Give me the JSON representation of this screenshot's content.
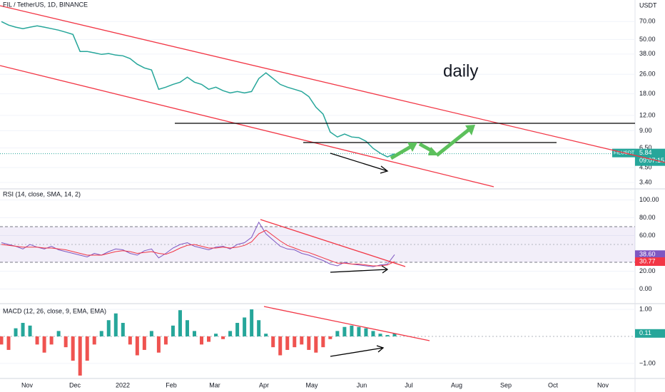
{
  "chart_data": [
    {
      "type": "line",
      "title": "FIL / TetherUS, 1D, BINANCE",
      "unit": "USDT",
      "annotation": "daily",
      "symbol_tag": "FILUSDT",
      "countdown": "09:07:15",
      "log_scale": true,
      "grid": true,
      "ylim": [
        3.14,
        105
      ],
      "yticks": [
        {
          "value": 70,
          "label": "70.00"
        },
        {
          "value": 50,
          "label": "50.00"
        },
        {
          "value": 38,
          "label": "38.00"
        },
        {
          "value": 26,
          "label": "26.00"
        },
        {
          "value": 18,
          "label": "18.00"
        },
        {
          "value": 12,
          "label": "12.00"
        },
        {
          "value": 9,
          "label": "9.00"
        },
        {
          "value": 6.5,
          "label": "6.50"
        },
        {
          "value": 4.5,
          "label": "4.50"
        },
        {
          "value": 3.4,
          "label": "3.40"
        }
      ],
      "x_labels": [
        "Nov",
        "Dec",
        "2022",
        "Feb",
        "Mar",
        "Apr",
        "May",
        "Jun",
        "Jul",
        "Aug",
        "Sep",
        "Oct",
        "Nov"
      ],
      "series": [
        {
          "color": "#26a69a",
          "values": [
            70,
            65.5,
            63,
            61.3,
            63,
            64.6,
            63,
            61.3,
            59.6,
            57.3,
            55,
            39.9,
            39.9,
            38.9,
            37.8,
            38.4,
            37.3,
            36.8,
            34.9,
            31.4,
            29.3,
            28.2,
            19.6,
            20.4,
            21.5,
            22.4,
            24.6,
            22.4,
            21.5,
            19.6,
            20.4,
            19.1,
            18.3,
            18.8,
            18.3,
            18.8,
            24,
            26.7,
            24,
            21.5,
            20.4,
            19.6,
            18.8,
            17.1,
            14,
            12.3,
            8.79,
            8,
            8.45,
            8,
            7.9,
            7.39,
            6.46,
            5.89,
            5.5,
            5.84
          ]
        }
      ]
    },
    {
      "type": "line",
      "title": "RSI (14, close, SMA, 14, 2)",
      "grid": true,
      "ylim": [
        -15.6,
        110
      ],
      "band": [
        30,
        70
      ],
      "yticks": [
        {
          "value": 100,
          "label": "100.00"
        },
        {
          "value": 80,
          "label": "80.00"
        },
        {
          "value": 60,
          "label": "60.00"
        },
        {
          "value": 20,
          "label": "20.00"
        },
        {
          "value": 0,
          "label": "0.00"
        }
      ],
      "series": [
        {
          "color": "#7e57c2",
          "last_label": "38.60",
          "values": [
            52,
            50,
            48,
            45,
            50,
            47,
            45,
            48,
            44,
            42,
            40,
            38,
            36,
            40,
            38,
            42,
            45,
            44,
            40,
            38,
            43,
            45,
            35,
            40,
            46,
            50,
            52,
            48,
            46,
            44,
            47,
            48,
            45,
            50,
            52,
            58,
            75,
            62,
            55,
            48,
            45,
            44,
            40,
            38,
            35,
            32,
            28,
            26,
            30,
            28,
            27,
            26,
            25,
            27,
            28,
            38.6
          ]
        },
        {
          "color": "#f23645",
          "last_label": "30.77",
          "values": [
            50,
            49,
            48,
            47,
            47,
            47,
            46,
            46,
            45,
            44,
            42,
            40,
            38,
            38,
            38,
            40,
            42,
            43,
            42,
            40,
            41,
            42,
            40,
            39,
            42,
            46,
            49,
            50,
            48,
            46,
            46,
            47,
            46,
            47,
            49,
            53,
            62,
            66,
            60,
            54,
            49,
            46,
            43,
            41,
            38,
            35,
            32,
            29,
            29,
            28,
            28,
            27,
            26,
            26,
            27,
            30.77
          ]
        }
      ]
    },
    {
      "type": "bar",
      "title": "MACD (12, 26, close, 9, EMA, EMA)",
      "grid": true,
      "ylim": [
        -1.53,
        1.16
      ],
      "yticks": [
        {
          "value": 1,
          "label": "1.00"
        },
        {
          "value": -1,
          "label": "−1.00"
        }
      ],
      "series": [
        {
          "color": "#26a69a",
          "negative_color": "#ef5350",
          "values": [
            -0.3,
            -0.5,
            0.3,
            0.5,
            0.4,
            -0.3,
            -0.6,
            -0.3,
            0.2,
            -0.4,
            -0.9,
            -1.45,
            -0.9,
            -0.3,
            0.2,
            0.6,
            0.85,
            0.5,
            -0.3,
            -0.7,
            -0.5,
            0.2,
            -0.6,
            -0.3,
            0.4,
            0.97,
            0.6,
            0.2,
            -0.3,
            -0.2,
            0.1,
            -0.1,
            0.2,
            0.5,
            0.7,
            1.0,
            0.6,
            0.1,
            -0.4,
            -0.7,
            -0.5,
            -0.4,
            -0.3,
            -0.5,
            -0.6,
            -0.4,
            -0.1,
            0.2,
            0.35,
            0.4,
            0.35,
            0.3,
            0.2,
            0.1,
            0.05,
            0.11
          ]
        }
      ]
    }
  ]
}
